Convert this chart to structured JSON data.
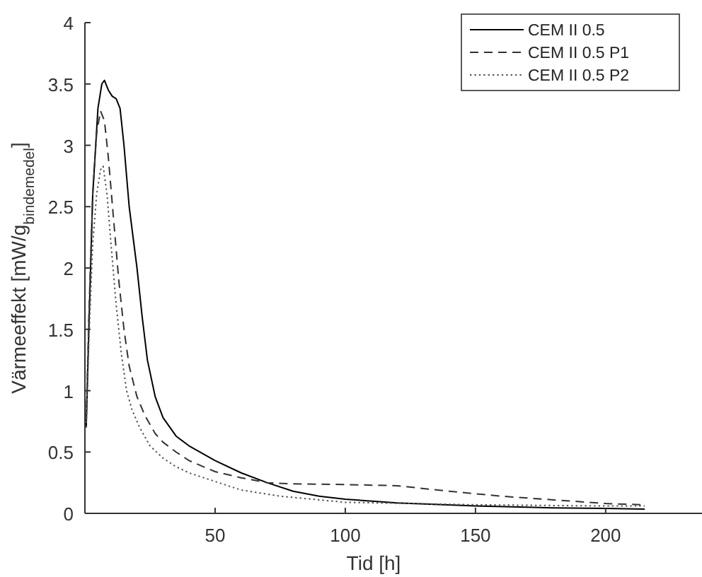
{
  "chart_data": {
    "type": "line",
    "xlabel": "Tid [h]",
    "ylabel": "Värmeeffekt [mW/g$_{bindemedel}$]",
    "xlim": [
      0,
      237
    ],
    "ylim": [
      0,
      4
    ],
    "xticks": [
      50,
      100,
      150,
      200
    ],
    "yticks": [
      0,
      0.5,
      1,
      1.5,
      2,
      2.5,
      3,
      3.5,
      4
    ],
    "grid": false,
    "legend": "top right",
    "series": [
      {
        "name": "CEM II 0.5",
        "color": "#000000",
        "line_style": "solid",
        "x": [
          0.5,
          1.5,
          3,
          5,
          6.5,
          7.5,
          9,
          10.5,
          12,
          13.5,
          15,
          17,
          20,
          22,
          24,
          27,
          30,
          35,
          40,
          50,
          60,
          70,
          80,
          90,
          100,
          120,
          150,
          180,
          200,
          215
        ],
        "values": [
          0.7,
          1.5,
          2.6,
          3.3,
          3.5,
          3.53,
          3.45,
          3.4,
          3.38,
          3.3,
          3.0,
          2.5,
          2.0,
          1.6,
          1.25,
          0.95,
          0.78,
          0.63,
          0.55,
          0.43,
          0.33,
          0.25,
          0.18,
          0.14,
          0.115,
          0.085,
          0.06,
          0.045,
          0.04,
          0.035
        ]
      },
      {
        "name": "CEM II 0.5 P1",
        "color": "#333333",
        "line_style": "dashed",
        "x": [
          0.5,
          1.5,
          3,
          4.5,
          6,
          7.5,
          9,
          11,
          13,
          15,
          17,
          20,
          23,
          27,
          30,
          35,
          40,
          50,
          60,
          70,
          80,
          100,
          120,
          140,
          160,
          180,
          200,
          215
        ],
        "values": [
          0.75,
          1.6,
          2.6,
          3.1,
          3.28,
          3.2,
          2.9,
          2.4,
          1.9,
          1.5,
          1.2,
          0.95,
          0.8,
          0.65,
          0.58,
          0.5,
          0.43,
          0.34,
          0.29,
          0.25,
          0.24,
          0.235,
          0.225,
          0.18,
          0.14,
          0.11,
          0.08,
          0.07
        ]
      },
      {
        "name": "CEM II 0.5 P2",
        "color": "#555555",
        "line_style": "dotted",
        "x": [
          0.5,
          1.5,
          3,
          4.5,
          6,
          7,
          8.5,
          10,
          12,
          14,
          16,
          18,
          21,
          25,
          30,
          35,
          40,
          50,
          60,
          75,
          100,
          125,
          150,
          175,
          200,
          215
        ],
        "values": [
          0.7,
          1.4,
          2.2,
          2.6,
          2.8,
          2.83,
          2.6,
          2.2,
          1.7,
          1.3,
          1.0,
          0.85,
          0.7,
          0.55,
          0.45,
          0.38,
          0.33,
          0.26,
          0.19,
          0.14,
          0.09,
          0.08,
          0.07,
          0.065,
          0.06,
          0.06
        ]
      }
    ]
  }
}
